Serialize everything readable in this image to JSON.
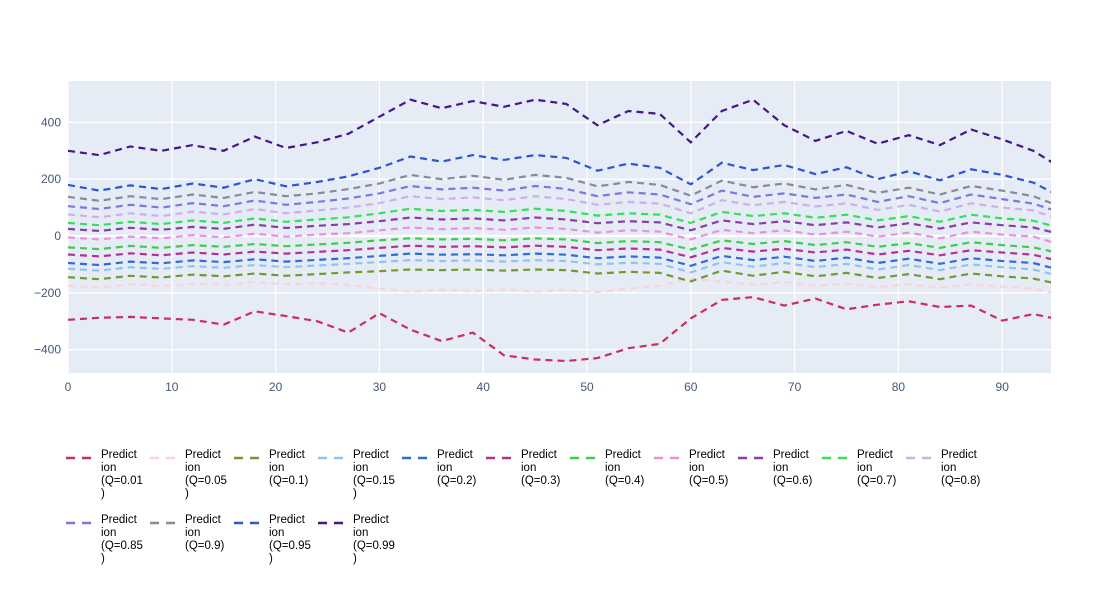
{
  "chart_data": {
    "type": "line",
    "title": "",
    "xlabel": "",
    "ylabel": "",
    "grid": true,
    "legend_position": "bottom",
    "plot_bg": "#e5ecf6",
    "grid_color": "#ffffff",
    "tick_color": "#44587a",
    "line_style": "dashed",
    "x_range": [
      0,
      94.7
    ],
    "y_range": [
      -482,
      545
    ],
    "x_ticks": [
      {
        "v": 0,
        "label": "0"
      },
      {
        "v": 10,
        "label": "10"
      },
      {
        "v": 20,
        "label": "20"
      },
      {
        "v": 30,
        "label": "30"
      },
      {
        "v": 40,
        "label": "40"
      },
      {
        "v": 50,
        "label": "50"
      },
      {
        "v": 60,
        "label": "60"
      },
      {
        "v": 70,
        "label": "70"
      },
      {
        "v": 80,
        "label": "80"
      },
      {
        "v": 90,
        "label": "90"
      }
    ],
    "y_ticks": [
      {
        "v": 400,
        "label": "400"
      },
      {
        "v": 200,
        "label": "200"
      },
      {
        "v": 0,
        "label": "0"
      },
      {
        "v": -200,
        "label": "−200"
      },
      {
        "v": -400,
        "label": "−400"
      }
    ],
    "x": [
      0,
      3,
      6,
      9,
      12,
      15,
      18,
      21,
      24,
      27,
      30,
      33,
      36,
      39,
      42,
      45,
      48,
      51,
      54,
      57,
      60,
      63,
      66,
      69,
      72,
      75,
      78,
      81,
      84,
      87,
      90,
      93,
      95
    ],
    "series": [
      {
        "name": "Prediction (Q=0.01)",
        "legend_label": "Predict\nion\n(Q=0.01\n)",
        "color": "#ce2c61",
        "values": [
          -295,
          -288,
          -285,
          -290,
          -295,
          -312,
          -265,
          -282,
          -300,
          -340,
          -272,
          -330,
          -370,
          -340,
          -420,
          -435,
          -440,
          -430,
          -395,
          -380,
          -290,
          -225,
          -215,
          -245,
          -220,
          -258,
          -242,
          -230,
          -250,
          -245,
          -298,
          -275,
          -290
        ]
      },
      {
        "name": "Prediction (Q=0.05)",
        "legend_label": "Predict\nion\n(Q=0.05\n)",
        "color": "#ffd2da",
        "values": [
          -175,
          -182,
          -170,
          -176,
          -168,
          -172,
          -162,
          -170,
          -166,
          -172,
          -185,
          -196,
          -190,
          -194,
          -188,
          -196,
          -190,
          -198,
          -185,
          -175,
          -150,
          -160,
          -172,
          -162,
          -175,
          -168,
          -180,
          -170,
          -182,
          -170,
          -178,
          -186,
          -200
        ]
      },
      {
        "name": "Prediction (Q=0.1)",
        "legend_label": "Predict\nion\n(Q=0.1)",
        "color": "#74992e",
        "values": [
          -145,
          -152,
          -140,
          -146,
          -136,
          -142,
          -132,
          -140,
          -134,
          -128,
          -124,
          -118,
          -120,
          -118,
          -122,
          -118,
          -120,
          -132,
          -126,
          -130,
          -160,
          -122,
          -140,
          -126,
          -142,
          -130,
          -148,
          -134,
          -152,
          -132,
          -142,
          -150,
          -166
        ]
      },
      {
        "name": "Prediction (Q=0.15)",
        "legend_label": "Predict\nion\n(Q=0.15\n)",
        "color": "#8ec4f0",
        "values": [
          -115,
          -122,
          -110,
          -116,
          -106,
          -112,
          -102,
          -110,
          -104,
          -98,
          -92,
          -85,
          -88,
          -86,
          -90,
          -85,
          -88,
          -100,
          -94,
          -98,
          -128,
          -92,
          -108,
          -95,
          -110,
          -98,
          -118,
          -102,
          -120,
          -100,
          -110,
          -118,
          -136
        ]
      },
      {
        "name": "Prediction (Q=0.2)",
        "legend_label": "Predict\nion\n(Q=0.2)",
        "color": "#2e6be0",
        "values": [
          -95,
          -102,
          -90,
          -96,
          -86,
          -92,
          -82,
          -90,
          -84,
          -78,
          -70,
          -62,
          -66,
          -64,
          -68,
          -62,
          -66,
          -78,
          -72,
          -76,
          -105,
          -70,
          -85,
          -73,
          -88,
          -76,
          -95,
          -80,
          -98,
          -78,
          -88,
          -95,
          -114
        ]
      },
      {
        "name": "Prediction (Q=0.3)",
        "legend_label": "Predict\nion\n(Q=0.3)",
        "color": "#b8308f",
        "values": [
          -65,
          -72,
          -61,
          -68,
          -58,
          -65,
          -55,
          -62,
          -56,
          -50,
          -42,
          -34,
          -38,
          -36,
          -40,
          -34,
          -38,
          -50,
          -44,
          -48,
          -75,
          -42,
          -55,
          -45,
          -58,
          -48,
          -65,
          -52,
          -68,
          -50,
          -58,
          -66,
          -84
        ]
      },
      {
        "name": "Prediction (Q=0.4)",
        "legend_label": "Predict\nion\n(Q=0.4)",
        "color": "#3bcf46",
        "values": [
          -40,
          -46,
          -35,
          -42,
          -32,
          -38,
          -28,
          -36,
          -30,
          -24,
          -15,
          -8,
          -12,
          -10,
          -15,
          -8,
          -12,
          -25,
          -18,
          -22,
          -48,
          -15,
          -28,
          -18,
          -32,
          -22,
          -38,
          -25,
          -42,
          -22,
          -32,
          -40,
          -56
        ]
      },
      {
        "name": "Prediction (Q=0.5)",
        "legend_label": "Predict\nion\n(Q=0.5)",
        "color": "#ee8fdc",
        "values": [
          -5,
          -12,
          -2,
          -8,
          3,
          -5,
          8,
          -2,
          5,
          10,
          20,
          30,
          24,
          28,
          22,
          30,
          25,
          12,
          20,
          15,
          -12,
          22,
          10,
          20,
          5,
          15,
          -2,
          12,
          -8,
          15,
          5,
          -2,
          -24
        ]
      },
      {
        "name": "Prediction (Q=0.6)",
        "legend_label": "Predict\nion\n(Q=0.6)",
        "color": "#8a3da6",
        "values": [
          25,
          18,
          29,
          22,
          32,
          25,
          40,
          28,
          36,
          42,
          52,
          65,
          58,
          62,
          55,
          65,
          58,
          45,
          52,
          48,
          20,
          55,
          42,
          52,
          38,
          48,
          30,
          45,
          26,
          48,
          38,
          30,
          12
        ]
      },
      {
        "name": "Prediction (Q=0.7)",
        "legend_label": "Predict\nion\n(Q=0.7)",
        "color": "#2ee455",
        "values": [
          46,
          38,
          50,
          42,
          55,
          46,
          62,
          50,
          58,
          66,
          80,
          96,
          88,
          92,
          85,
          96,
          88,
          72,
          80,
          75,
          46,
          85,
          70,
          80,
          64,
          75,
          55,
          70,
          50,
          75,
          62,
          54,
          34
        ]
      },
      {
        "name": "Prediction (Q=0.8)",
        "legend_label": "Predict\nion\n(Q=0.8)",
        "color": "#cfaeec",
        "values": [
          76,
          66,
          80,
          70,
          86,
          76,
          95,
          80,
          90,
          100,
          116,
          140,
          130,
          136,
          126,
          140,
          130,
          110,
          120,
          114,
          80,
          126,
          108,
          120,
          104,
          115,
          92,
          110,
          86,
          115,
          100,
          90,
          64
        ]
      },
      {
        "name": "Prediction (Q=0.85)",
        "legend_label": "Predict\nion\n(Q=0.85\n)",
        "color": "#7f75e3",
        "values": [
          105,
          95,
          110,
          100,
          116,
          105,
          125,
          110,
          120,
          132,
          150,
          176,
          164,
          170,
          160,
          176,
          166,
          140,
          154,
          146,
          112,
          160,
          138,
          150,
          134,
          146,
          120,
          140,
          116,
          146,
          130,
          114,
          90
        ]
      },
      {
        "name": "Prediction (Q=0.9)",
        "legend_label": "Predict\nion\n(Q=0.9)",
        "color": "#8d8799",
        "values": [
          138,
          124,
          140,
          130,
          146,
          134,
          155,
          140,
          150,
          165,
          185,
          215,
          200,
          212,
          198,
          215,
          205,
          175,
          190,
          180,
          142,
          195,
          172,
          185,
          164,
          180,
          152,
          170,
          146,
          176,
          160,
          140,
          112
        ]
      },
      {
        "name": "Prediction (Q=0.95)",
        "legend_label": "Predict\nion\n(Q=0.95\n)",
        "color": "#2a55d4",
        "values": [
          180,
          160,
          178,
          165,
          185,
          170,
          200,
          175,
          190,
          210,
          240,
          280,
          262,
          285,
          268,
          285,
          275,
          230,
          255,
          240,
          182,
          258,
          232,
          250,
          218,
          242,
          200,
          228,
          196,
          235,
          215,
          188,
          150
        ]
      },
      {
        "name": "Prediction (Q=0.99)",
        "legend_label": "Predict\nion\n(Q=0.99\n)",
        "color": "#471689",
        "values": [
          300,
          285,
          315,
          300,
          320,
          300,
          350,
          310,
          330,
          360,
          420,
          480,
          450,
          475,
          455,
          480,
          465,
          390,
          440,
          430,
          330,
          440,
          480,
          390,
          335,
          370,
          325,
          355,
          320,
          375,
          340,
          300,
          255
        ]
      }
    ]
  }
}
